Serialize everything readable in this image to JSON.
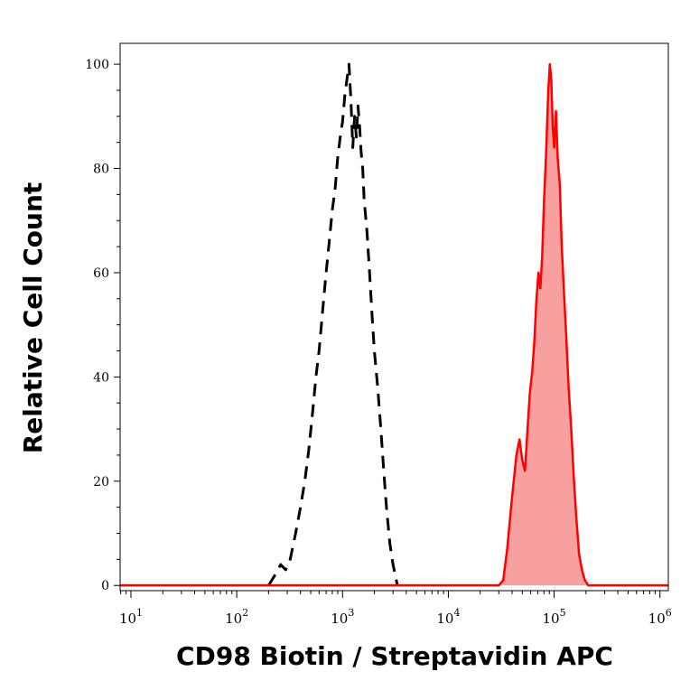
{
  "chart_data": {
    "type": "area",
    "xlabel": "CD98 Biotin / Streptavidin APC",
    "ylabel": "Relative Cell Count",
    "xscale": "log",
    "xlim": [
      7.9,
      1200000
    ],
    "ylim": [
      -1,
      104
    ],
    "xticks": [
      {
        "value": 10,
        "base": "10",
        "exp": "1"
      },
      {
        "value": 100,
        "base": "10",
        "exp": "2"
      },
      {
        "value": 1000,
        "base": "10",
        "exp": "3"
      },
      {
        "value": 10000,
        "base": "10",
        "exp": "4"
      },
      {
        "value": 100000,
        "base": "10",
        "exp": "5"
      },
      {
        "value": 1000000,
        "base": "10",
        "exp": "6"
      }
    ],
    "yticks": [
      {
        "value": 0,
        "label": "0"
      },
      {
        "value": 20,
        "label": "20"
      },
      {
        "value": 40,
        "label": "40"
      },
      {
        "value": 60,
        "label": "60"
      },
      {
        "value": 80,
        "label": "80"
      },
      {
        "value": 100,
        "label": "100"
      }
    ],
    "grid": false,
    "series": [
      {
        "style": "dashed",
        "color": "#000000",
        "fill": false,
        "points": [
          [
            200,
            0
          ],
          [
            230,
            2
          ],
          [
            260,
            4
          ],
          [
            290,
            3
          ],
          [
            320,
            5
          ],
          [
            360,
            10
          ],
          [
            400,
            15
          ],
          [
            440,
            20
          ],
          [
            480,
            26
          ],
          [
            520,
            33
          ],
          [
            560,
            40
          ],
          [
            600,
            45
          ],
          [
            650,
            53
          ],
          [
            700,
            60
          ],
          [
            750,
            66
          ],
          [
            800,
            72
          ],
          [
            850,
            76
          ],
          [
            900,
            82
          ],
          [
            950,
            86
          ],
          [
            1000,
            89
          ],
          [
            1050,
            94
          ],
          [
            1100,
            97
          ],
          [
            1150,
            100
          ],
          [
            1200,
            93
          ],
          [
            1250,
            84
          ],
          [
            1300,
            90
          ],
          [
            1350,
            86
          ],
          [
            1400,
            92
          ],
          [
            1450,
            88
          ],
          [
            1500,
            83
          ],
          [
            1550,
            80
          ],
          [
            1600,
            74
          ],
          [
            1700,
            68
          ],
          [
            1800,
            60
          ],
          [
            1900,
            52
          ],
          [
            2000,
            45
          ],
          [
            2150,
            38
          ],
          [
            2300,
            30
          ],
          [
            2450,
            22
          ],
          [
            2600,
            15
          ],
          [
            2800,
            8
          ],
          [
            3000,
            4
          ],
          [
            3300,
            0
          ]
        ]
      },
      {
        "style": "solid",
        "color": "#ff0000",
        "fill": true,
        "fill_color": "#f8a0a0",
        "points": [
          [
            8,
            0
          ],
          [
            30000,
            0
          ],
          [
            33000,
            1
          ],
          [
            36000,
            7
          ],
          [
            40000,
            17
          ],
          [
            44000,
            25
          ],
          [
            47000,
            28
          ],
          [
            50000,
            24
          ],
          [
            53000,
            22
          ],
          [
            56000,
            30
          ],
          [
            59000,
            37
          ],
          [
            62000,
            41
          ],
          [
            65000,
            47
          ],
          [
            68000,
            55
          ],
          [
            71000,
            60
          ],
          [
            74000,
            57
          ],
          [
            77000,
            63
          ],
          [
            80000,
            73
          ],
          [
            84000,
            83
          ],
          [
            88000,
            95
          ],
          [
            91000,
            100
          ],
          [
            94000,
            97
          ],
          [
            97000,
            88
          ],
          [
            100000,
            84
          ],
          [
            104000,
            91
          ],
          [
            108000,
            82
          ],
          [
            113000,
            77
          ],
          [
            118000,
            65
          ],
          [
            124000,
            56
          ],
          [
            130000,
            48
          ],
          [
            137000,
            38
          ],
          [
            145000,
            30
          ],
          [
            153000,
            21
          ],
          [
            162000,
            13
          ],
          [
            172000,
            6
          ],
          [
            183000,
            3
          ],
          [
            195000,
            1
          ],
          [
            210000,
            0
          ],
          [
            1200000,
            0
          ]
        ]
      }
    ]
  }
}
